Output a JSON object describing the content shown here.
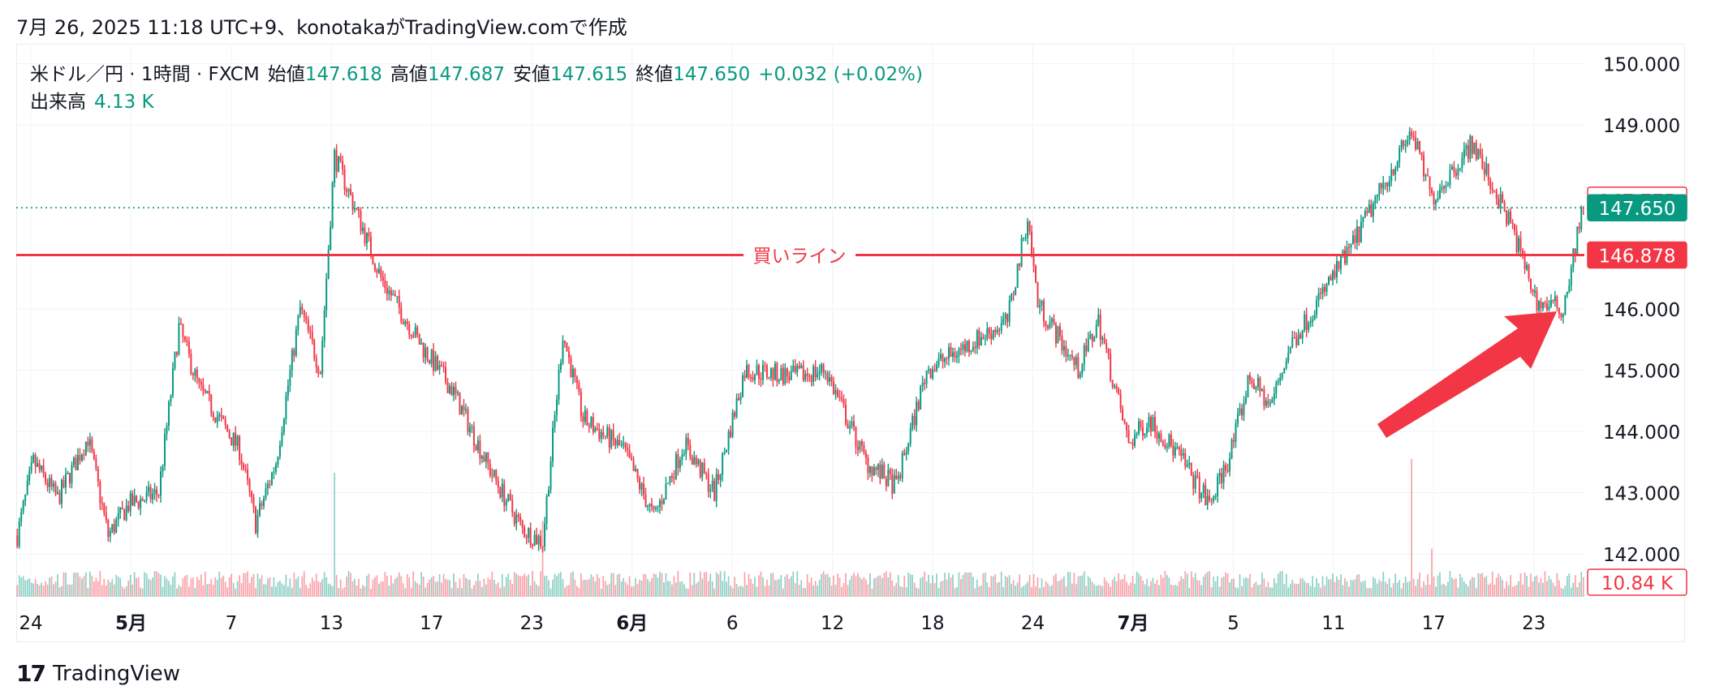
{
  "header": {
    "caption": "7月 26, 2025 11:18 UTC+9、konotakaがTradingView.comで作成"
  },
  "legend": {
    "symbol": "米ドル／円 · 1時間 · FXCM",
    "open_label": "始値",
    "open": "147.618",
    "high_label": "高値",
    "high": "147.687",
    "low_label": "安値",
    "low": "147.615",
    "close_label": "終値",
    "close": "147.650",
    "change": "+0.032 (+0.02%)",
    "volume_label": "出来高",
    "volume": "4.13 K"
  },
  "footer": {
    "brand": "TradingView",
    "logo": "17"
  },
  "colors": {
    "up": "#089981",
    "down": "#f23645",
    "buy_line": "#f23645",
    "arrow": "#f23645",
    "grid": "#f0f3fa"
  },
  "chart_data": {
    "type": "candlestick",
    "instrument": "米ドル／円",
    "timeframe": "1時間",
    "y_ticks": [
      150.0,
      149.0,
      146.0,
      145.0,
      144.0,
      143.0,
      142.0
    ],
    "y_tick_labels": [
      "150.000",
      "149.000",
      "146.000",
      "145.000",
      "144.000",
      "143.000",
      "142.000"
    ],
    "ylim": [
      141.3,
      150.3
    ],
    "x_tick_labels": [
      "24",
      "5月",
      "7",
      "13",
      "17",
      "23",
      "6月",
      "6",
      "12",
      "18",
      "24",
      "7月",
      "5",
      "11",
      "17",
      "23"
    ],
    "price_path": [
      [
        0,
        142.3
      ],
      [
        8,
        143.5
      ],
      [
        20,
        142.9
      ],
      [
        35,
        143.9
      ],
      [
        45,
        142.3
      ],
      [
        55,
        142.8
      ],
      [
        70,
        143.0
      ],
      [
        80,
        145.7
      ],
      [
        90,
        144.7
      ],
      [
        110,
        143.7
      ],
      [
        118,
        142.5
      ],
      [
        128,
        143.5
      ],
      [
        140,
        146.0
      ],
      [
        150,
        145.0
      ],
      [
        157,
        148.5
      ],
      [
        170,
        147.4
      ],
      [
        180,
        146.5
      ],
      [
        200,
        145.4
      ],
      [
        215,
        144.7
      ],
      [
        235,
        143.3
      ],
      [
        250,
        142.4
      ],
      [
        260,
        142.2
      ],
      [
        270,
        145.6
      ],
      [
        280,
        144.2
      ],
      [
        300,
        143.7
      ],
      [
        315,
        142.6
      ],
      [
        330,
        143.8
      ],
      [
        345,
        143.0
      ],
      [
        360,
        145.0
      ],
      [
        385,
        144.9
      ],
      [
        400,
        145.0
      ],
      [
        420,
        143.5
      ],
      [
        435,
        143.1
      ],
      [
        450,
        145.0
      ],
      [
        470,
        145.4
      ],
      [
        490,
        145.8
      ],
      [
        500,
        147.5
      ],
      [
        505,
        146.1
      ],
      [
        525,
        145.0
      ],
      [
        535,
        145.8
      ],
      [
        550,
        143.8
      ],
      [
        560,
        144.2
      ],
      [
        575,
        143.6
      ],
      [
        590,
        142.8
      ],
      [
        600,
        143.6
      ],
      [
        610,
        144.9
      ],
      [
        620,
        144.4
      ],
      [
        630,
        145.4
      ],
      [
        660,
        147.0
      ],
      [
        690,
        148.9
      ],
      [
        700,
        147.8
      ],
      [
        720,
        148.7
      ],
      [
        740,
        147.3
      ],
      [
        752,
        146.1
      ],
      [
        765,
        146.0
      ],
      [
        775,
        147.7
      ]
    ],
    "last_index": 775,
    "last_price": 147.65,
    "current_price_label": "147.650",
    "high_marker_price": 147.775,
    "high_marker_label": "147.775",
    "buy_line": {
      "price": 146.878,
      "label": "146.878",
      "text": "買いライン"
    },
    "volume_label": "10.84 K",
    "volume_spikes": [
      [
        157,
        0.9
      ],
      [
        260,
        0.55
      ],
      [
        690,
        1.0
      ],
      [
        700,
        0.35
      ]
    ]
  }
}
